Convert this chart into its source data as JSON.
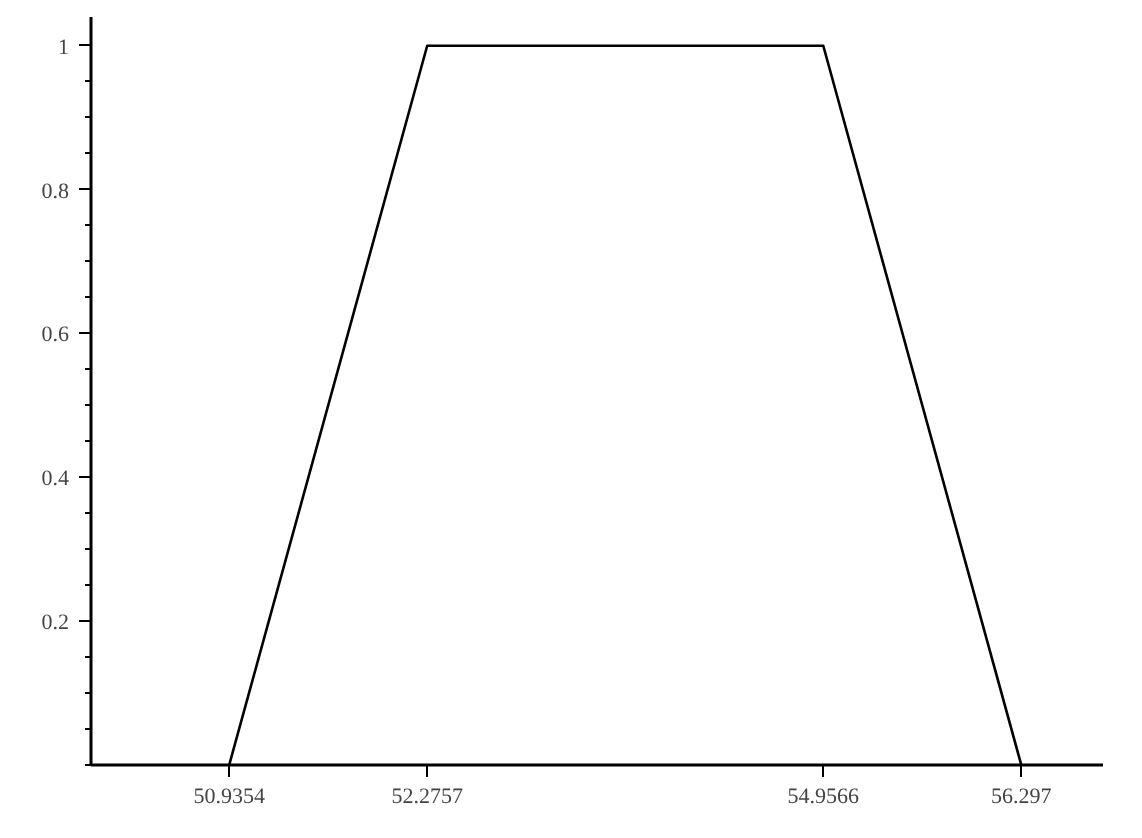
{
  "chart_data": {
    "type": "line",
    "x": [
      50.9354,
      52.2757,
      54.9566,
      56.297
    ],
    "series": [
      {
        "color": "#000000",
        "values": [
          0,
          1,
          1,
          0
        ]
      }
    ],
    "xlim": [
      50,
      56.85
    ],
    "ylim": [
      0,
      1.04
    ],
    "xticks": [
      50.9354,
      52.2757,
      54.9566,
      56.297
    ],
    "yticks": [
      0.2,
      0.4,
      0.6,
      0.8,
      1
    ],
    "grid": false,
    "marker": "none",
    "line_style": "solid"
  }
}
